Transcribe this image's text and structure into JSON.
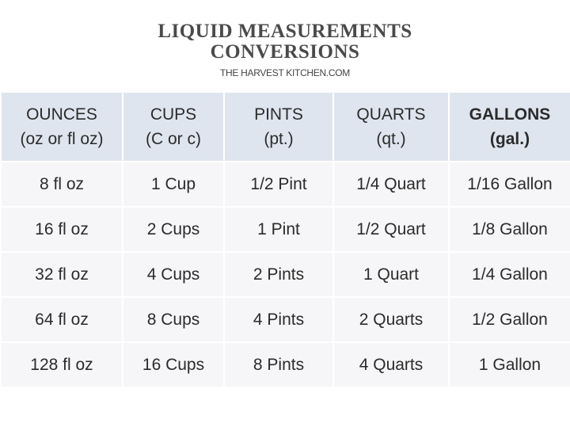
{
  "title_line1": "LIQUID MEASUREMENTS",
  "title_line2": "CONVERSIONS",
  "source": "THE HARVEST KITCHEN.COM",
  "columns": [
    {
      "name": "OUNCES",
      "abbr": "(oz or fl oz)"
    },
    {
      "name": "CUPS",
      "abbr": "(C or c)"
    },
    {
      "name": "PINTS",
      "abbr": "(pt.)"
    },
    {
      "name": "QUARTS",
      "abbr": "(qt.)"
    },
    {
      "name": "GALLONS",
      "abbr": "(gal.)"
    }
  ],
  "rows": [
    [
      "8 fl oz",
      "1 Cup",
      "1/2 Pint",
      "1/4 Quart",
      "1/16 Gallon"
    ],
    [
      "16 fl oz",
      "2 Cups",
      "1 Pint",
      "1/2 Quart",
      "1/8 Gallon"
    ],
    [
      "32 fl oz",
      "4 Cups",
      "2 Pints",
      "1 Quart",
      "1/4 Gallon"
    ],
    [
      "64 fl oz",
      "8 Cups",
      "4 Pints",
      "2 Quarts",
      "1/2 Gallon"
    ],
    [
      "128 fl oz",
      "16 Cups",
      "8 Pints",
      "4 Quarts",
      "1 Gallon"
    ]
  ],
  "colors": {
    "header_bg": "#dfe5ef",
    "row_bg": "#f6f6f8",
    "text": "#2b2b2b"
  }
}
